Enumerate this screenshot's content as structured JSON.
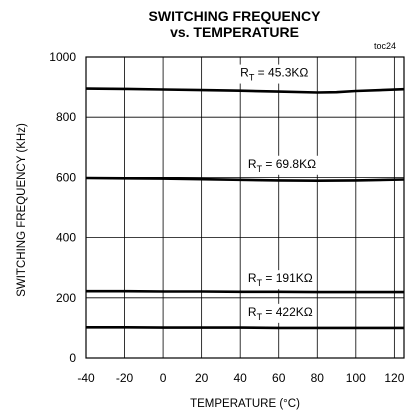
{
  "chart_data": {
    "type": "line",
    "title_lines": [
      "SWITCHING FREQUENCY",
      "vs. TEMPERATURE"
    ],
    "tag": "toc24",
    "xlabel": "TEMPERATURE (°C)",
    "ylabel": "SWITCHING FREQUENCY (KHz)",
    "xlim": [
      -40,
      125
    ],
    "ylim": [
      0,
      1000
    ],
    "xticks": [
      -40,
      -20,
      0,
      20,
      40,
      60,
      80,
      100,
      120
    ],
    "yticks": [
      0,
      200,
      400,
      600,
      800,
      1000
    ],
    "grid": true,
    "series": [
      {
        "label_prefix": "R",
        "label_sub": "T",
        "label_suffix": " = 45.3KΩ",
        "label_x": 40,
        "label_y": 935,
        "x": [
          -40,
          -20,
          0,
          20,
          40,
          60,
          80,
          90,
          100,
          125
        ],
        "y": [
          895,
          894,
          892,
          890,
          888,
          885,
          882,
          883,
          887,
          893
        ]
      },
      {
        "label_prefix": "R",
        "label_sub": "T",
        "label_suffix": " = 69.8KΩ",
        "label_x": 44,
        "label_y": 632,
        "x": [
          -40,
          -20,
          0,
          20,
          40,
          60,
          80,
          100,
          125
        ],
        "y": [
          598,
          597,
          596,
          594,
          592,
          590,
          589,
          590,
          593
        ]
      },
      {
        "label_prefix": "R",
        "label_sub": "T",
        "label_suffix": " = 191KΩ",
        "label_x": 44,
        "label_y": 252,
        "x": [
          -40,
          -20,
          0,
          20,
          40,
          60,
          80,
          100,
          125
        ],
        "y": [
          222,
          222,
          221,
          221,
          220,
          220,
          219,
          219,
          219
        ]
      },
      {
        "label_prefix": "R",
        "label_sub": "T",
        "label_suffix": " = 422KΩ",
        "label_x": 44,
        "label_y": 140,
        "x": [
          -40,
          -20,
          0,
          20,
          40,
          60,
          80,
          100,
          125
        ],
        "y": [
          102,
          102,
          101,
          101,
          101,
          100,
          100,
          100,
          100
        ]
      }
    ]
  }
}
